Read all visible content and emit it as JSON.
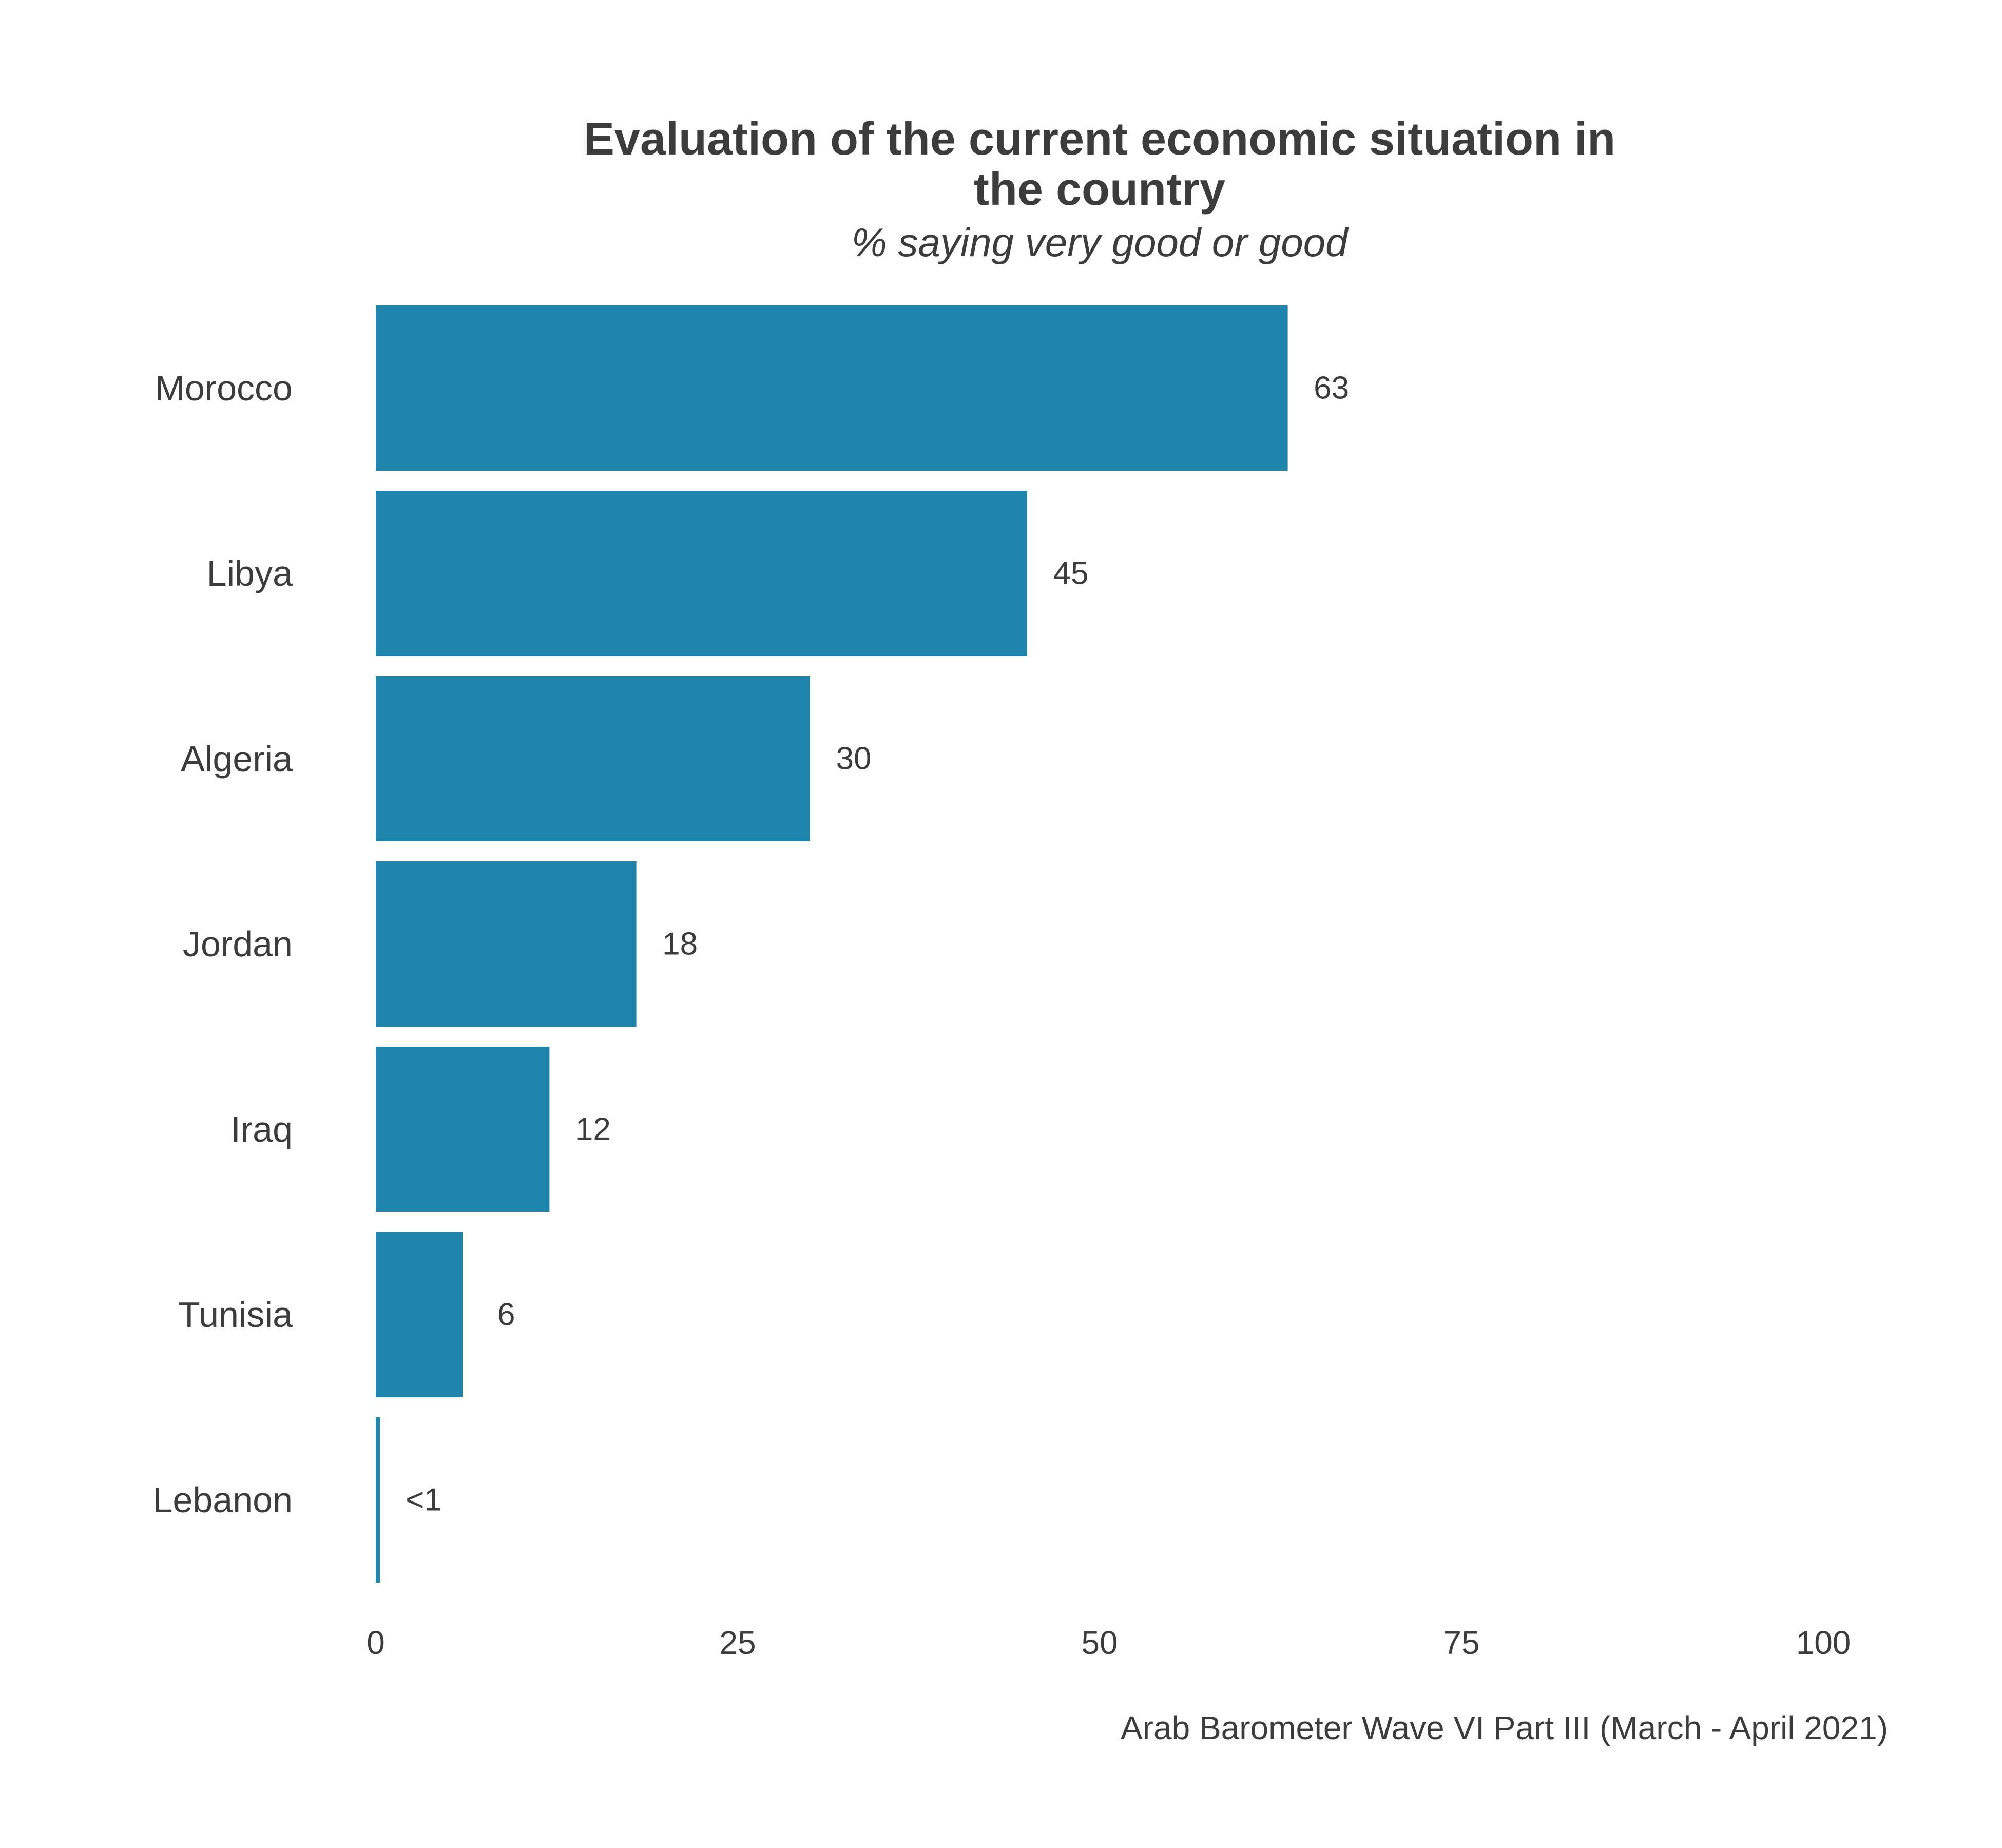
{
  "chart": {
    "title_line1": "Evaluation of the current economic situation in",
    "title_line2": "the country",
    "subtitle": "% saying very good or good",
    "caption": "Arab Barometer Wave VI Part III (March - April 2021)"
  },
  "colors": {
    "bar": "#1f85ac",
    "text": "#3c3c3c"
  },
  "chart_data": {
    "type": "bar",
    "orientation": "horizontal",
    "title": "Evaluation of the current economic situation in the country",
    "subtitle": "% saying very good or good",
    "categories": [
      "Morocco",
      "Libya",
      "Algeria",
      "Jordan",
      "Iraq",
      "Tunisia",
      "Lebanon"
    ],
    "values": [
      63,
      45,
      30,
      18,
      12,
      6,
      0.3
    ],
    "value_labels": [
      "63",
      "45",
      "30",
      "18",
      "12",
      "6",
      "<1"
    ],
    "xlim": [
      0,
      100
    ],
    "xticks": [
      0,
      25,
      50,
      75,
      100
    ],
    "xlabel": "",
    "ylabel": "",
    "grid": false,
    "legend": "none",
    "source": "Arab Barometer Wave VI Part III (March - April 2021)"
  }
}
